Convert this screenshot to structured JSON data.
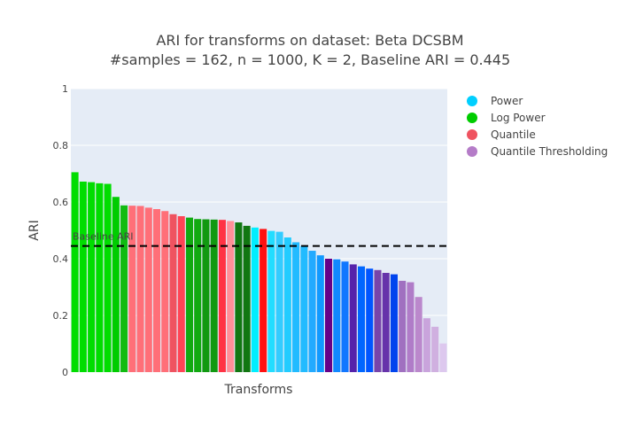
{
  "chart_data": {
    "type": "bar",
    "title_line1": "ARI for transforms on dataset: Beta DCSBM",
    "title_line2": "#samples = 162, n = 1000, K = 2, Baseline ARI = 0.445",
    "xlabel": "Transforms",
    "ylabel": "ARI",
    "ylim": [
      0,
      1
    ],
    "yticks": [
      "0",
      "0.2",
      "0.4",
      "0.6",
      "0.8",
      "1"
    ],
    "baseline": {
      "value": 0.445,
      "label": "Baseline ARI"
    },
    "grid": true,
    "legend_position": "right",
    "series": [
      {
        "name": "Power",
        "color": "#00cfff"
      },
      {
        "name": "Log Power",
        "color": "#00cc00"
      },
      {
        "name": "Quantile",
        "color": "#ef5360"
      },
      {
        "name": "Quantile Thresholding",
        "color": "#b57cc8"
      }
    ],
    "bars": [
      {
        "value": 0.705,
        "color": "#00dd00"
      },
      {
        "value": 0.672,
        "color": "#00dd00"
      },
      {
        "value": 0.67,
        "color": "#00dd00"
      },
      {
        "value": 0.666,
        "color": "#00dd00"
      },
      {
        "value": 0.664,
        "color": "#00dd00"
      },
      {
        "value": 0.618,
        "color": "#00cc00"
      },
      {
        "value": 0.588,
        "color": "#11bb11"
      },
      {
        "value": 0.587,
        "color": "#ff6f78"
      },
      {
        "value": 0.586,
        "color": "#ff6f78"
      },
      {
        "value": 0.58,
        "color": "#ff6f78"
      },
      {
        "value": 0.575,
        "color": "#ff6f78"
      },
      {
        "value": 0.568,
        "color": "#ff6f78"
      },
      {
        "value": 0.557,
        "color": "#ef5360"
      },
      {
        "value": 0.55,
        "color": "#ff4455"
      },
      {
        "value": 0.545,
        "color": "#11aa11"
      },
      {
        "value": 0.54,
        "color": "#11aa11"
      },
      {
        "value": 0.539,
        "color": "#119911"
      },
      {
        "value": 0.538,
        "color": "#119911"
      },
      {
        "value": 0.537,
        "color": "#ff3344"
      },
      {
        "value": 0.533,
        "color": "#ff8f98"
      },
      {
        "value": 0.528,
        "color": "#117711"
      },
      {
        "value": 0.516,
        "color": "#117711"
      },
      {
        "value": 0.51,
        "color": "#00eeff"
      },
      {
        "value": 0.505,
        "color": "#ff1111"
      },
      {
        "value": 0.498,
        "color": "#22ddff"
      },
      {
        "value": 0.495,
        "color": "#33ccff"
      },
      {
        "value": 0.475,
        "color": "#22ccff"
      },
      {
        "value": 0.458,
        "color": "#22bbff"
      },
      {
        "value": 0.445,
        "color": "#22bbff"
      },
      {
        "value": 0.428,
        "color": "#22aaff"
      },
      {
        "value": 0.412,
        "color": "#1199ff"
      },
      {
        "value": 0.4,
        "color": "#660088"
      },
      {
        "value": 0.398,
        "color": "#1188ff"
      },
      {
        "value": 0.39,
        "color": "#1177ff"
      },
      {
        "value": 0.38,
        "color": "#5522aa"
      },
      {
        "value": 0.373,
        "color": "#0066ff"
      },
      {
        "value": 0.365,
        "color": "#0055ff"
      },
      {
        "value": 0.36,
        "color": "#7744aa"
      },
      {
        "value": 0.35,
        "color": "#6633aa"
      },
      {
        "value": 0.345,
        "color": "#0044ee"
      },
      {
        "value": 0.322,
        "color": "#a070c0"
      },
      {
        "value": 0.317,
        "color": "#b07cc8"
      },
      {
        "value": 0.265,
        "color": "#bb88cc"
      },
      {
        "value": 0.19,
        "color": "#c9a4dc"
      },
      {
        "value": 0.16,
        "color": "#d0b0e0"
      },
      {
        "value": 0.101,
        "color": "#ddc8ee"
      }
    ]
  }
}
